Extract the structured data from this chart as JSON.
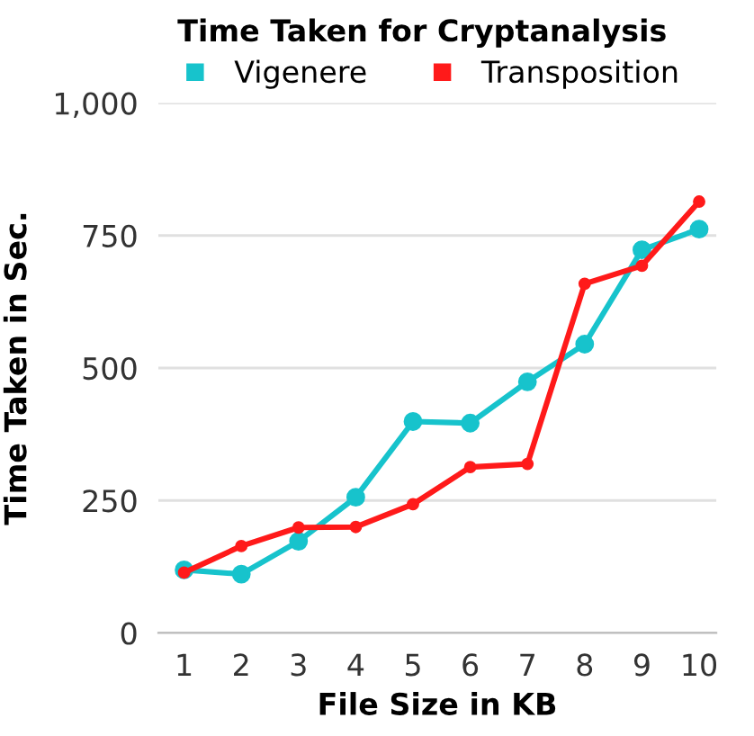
{
  "chart_data": {
    "type": "line",
    "title": "Time Taken for Cryptanalysis",
    "xlabel": "File Size in KB",
    "ylabel": "Time Taken in Sec.",
    "categories": [
      "1",
      "2",
      "3",
      "4",
      "5",
      "6",
      "7",
      "8",
      "9",
      "10"
    ],
    "series": [
      {
        "name": "Vigenere",
        "color": "#17c3cc",
        "values": [
          119,
          111,
          173,
          256,
          399,
          396,
          474,
          545,
          723,
          762
        ]
      },
      {
        "name": "Transposition",
        "color": "#ff1a1a",
        "values": [
          114,
          164,
          199,
          200,
          243,
          313,
          319,
          659,
          693,
          814
        ]
      }
    ],
    "ylim": [
      0,
      1000
    ],
    "yticks": [
      0,
      250,
      500,
      750,
      {
        "value": 1000,
        "label": "1,000"
      }
    ],
    "grid": "y",
    "legend": "top",
    "marker": "circle",
    "line_style": "solid"
  }
}
